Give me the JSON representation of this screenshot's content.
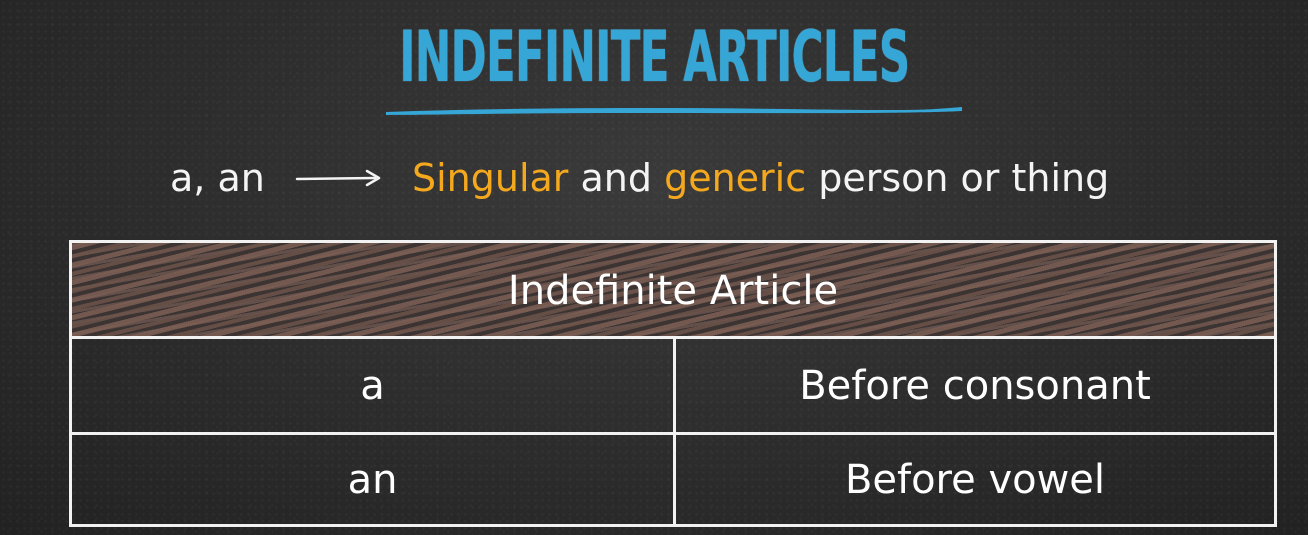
{
  "title": "INDEFINITE ARTICLES",
  "subtitle": {
    "articles": "a, an",
    "desc_part1": "Singular",
    "desc_part2": " and ",
    "desc_part3": "generic",
    "desc_part4": " person or thing"
  },
  "table": {
    "header": "Indefinite Article",
    "rows": [
      {
        "article": "a",
        "usage": "Before consonant"
      },
      {
        "article": "an",
        "usage": "Before vowel"
      }
    ]
  },
  "colors": {
    "title": "#35a6d6",
    "accent": "#f4a81d",
    "chalk": "#f4f4f4",
    "board": "#2c2c2c",
    "header_fill": "#7d5f54"
  },
  "icons": {
    "arrow": "right-arrow-icon"
  }
}
